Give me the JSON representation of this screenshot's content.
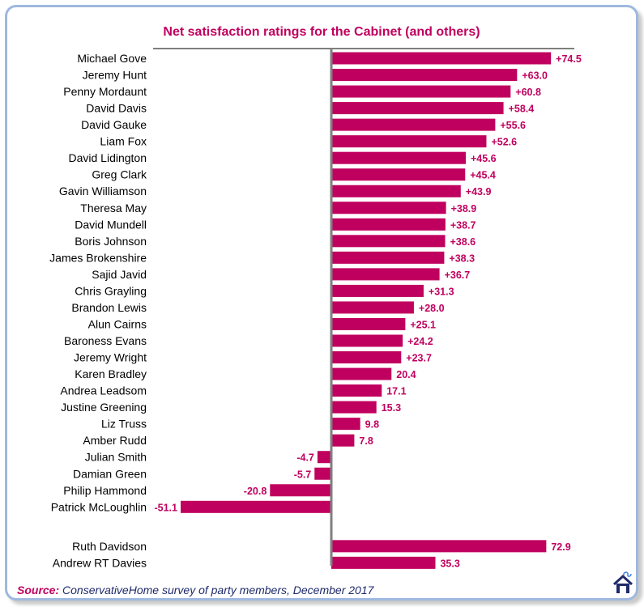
{
  "chart_data": {
    "type": "bar",
    "orientation": "horizontal",
    "title": "Net satisfaction ratings for the Cabinet (and others)",
    "xlabel": "",
    "ylabel": "",
    "bar_color": "#c0005e",
    "value_label_color": "#c0005e",
    "axis_color": "#7f7f7f",
    "categories": [
      "Michael Gove",
      "Jeremy Hunt",
      "Penny Mordaunt",
      "David Davis",
      "David Gauke",
      "Liam Fox",
      "David Lidington",
      "Greg Clark",
      "Gavin Williamson",
      "Theresa May",
      "David Mundell",
      "Boris Johnson",
      "James Brokenshire",
      "Sajid Javid",
      "Chris Grayling",
      "Brandon Lewis",
      "Alun Cairns",
      "Baroness Evans",
      "Jeremy Wright",
      "Karen Bradley",
      "Andrea Leadsom",
      "Justine Greening",
      "Liz Truss",
      "Amber Rudd",
      "Julian Smith",
      "Damian Green",
      "Philip Hammond",
      "Patrick McLoughlin",
      "Ruth Davidson",
      "Andrew RT Davies"
    ],
    "values": [
      74.5,
      63.0,
      60.8,
      58.4,
      55.6,
      52.6,
      45.6,
      45.4,
      43.9,
      38.9,
      38.7,
      38.6,
      38.3,
      36.7,
      31.3,
      28.0,
      25.1,
      24.2,
      23.7,
      20.4,
      17.1,
      15.3,
      9.8,
      7.8,
      -4.7,
      -5.7,
      -20.8,
      -51.1,
      72.9,
      35.3
    ],
    "data_labels": [
      "+74.5",
      "+63.0",
      "+60.8",
      "+58.4",
      "+55.6",
      "+52.6",
      "+45.6",
      "+45.4",
      "+43.9",
      "+38.9",
      "+38.7",
      "+38.6",
      "+38.3",
      "+36.7",
      "+31.3",
      "+28.0",
      "+25.1",
      "+24.2",
      "+23.7",
      "20.4",
      "17.1",
      "15.3",
      "9.8",
      "7.8",
      "-4.7",
      "-5.7",
      "-20.8",
      "-51.1",
      "72.9",
      "35.3"
    ],
    "groups": [
      {
        "start": 0,
        "count": 28
      },
      {
        "start": 28,
        "count": 2
      }
    ],
    "xlim": [
      -51.1,
      74.5
    ],
    "grid": false,
    "legend": "none"
  },
  "footer": {
    "source_label": "Source:",
    "source_text": "ConservativeHome survey of party members, December 2017",
    "logo_icon": "conservativehome-house-icon"
  }
}
